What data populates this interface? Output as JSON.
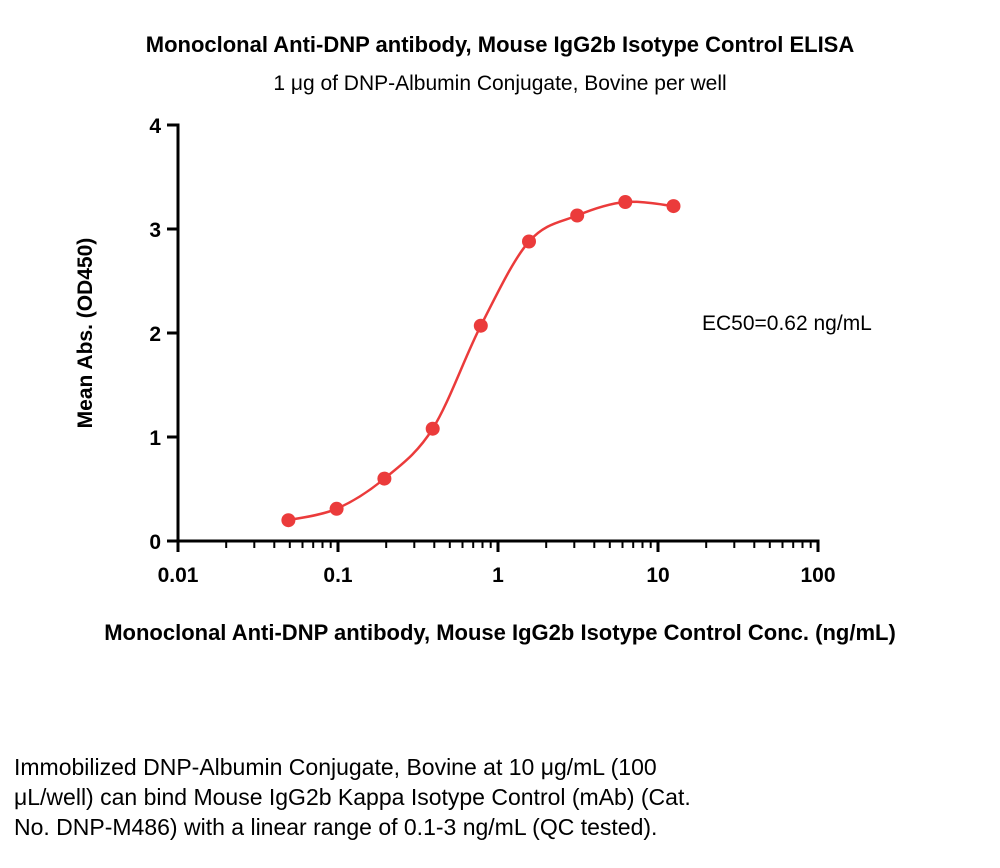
{
  "chart_data": {
    "type": "scatter",
    "title": "Monoclonal Anti-DNP antibody, Mouse IgG2b Isotype Control ELISA",
    "subtitle": "1 μg of DNP-Albumin Conjugate, Bovine per well",
    "xlabel": "Monoclonal Anti-DNP antibody, Mouse IgG2b Isotype Control Conc. (ng/mL)",
    "ylabel": "Mean Abs. (OD450)",
    "annotation": "EC50=0.62 ng/mL",
    "ec50_ng_ml": 0.62,
    "xscale": "log",
    "xlim": [
      0.01,
      100
    ],
    "ylim": [
      0,
      4
    ],
    "xticks": [
      0.01,
      0.1,
      1,
      10,
      100
    ],
    "xtick_labels": [
      "0.01",
      "0.1",
      "1",
      "10",
      "100"
    ],
    "yticks": [
      0,
      1,
      2,
      3,
      4
    ],
    "ytick_labels": [
      "0",
      "1",
      "2",
      "3",
      "4"
    ],
    "x": [
      0.049,
      0.098,
      0.195,
      0.391,
      0.781,
      1.563,
      3.125,
      6.25,
      12.5
    ],
    "y": [
      0.2,
      0.31,
      0.6,
      1.08,
      2.07,
      2.88,
      3.13,
      3.26,
      3.22
    ],
    "curve_color": "#eb3b3b",
    "marker_color": "#eb3b3b",
    "axis_color": "#000000",
    "grid": false,
    "legend": "none"
  },
  "footer": {
    "lines": [
      "Immobilized DNP-Albumin Conjugate, Bovine at 10 μg/mL (100",
      "μL/well) can bind Mouse IgG2b Kappa Isotype Control (mAb) (Cat.",
      "No. DNP-M486) with a linear range of 0.1-3 ng/mL (QC tested)."
    ]
  }
}
